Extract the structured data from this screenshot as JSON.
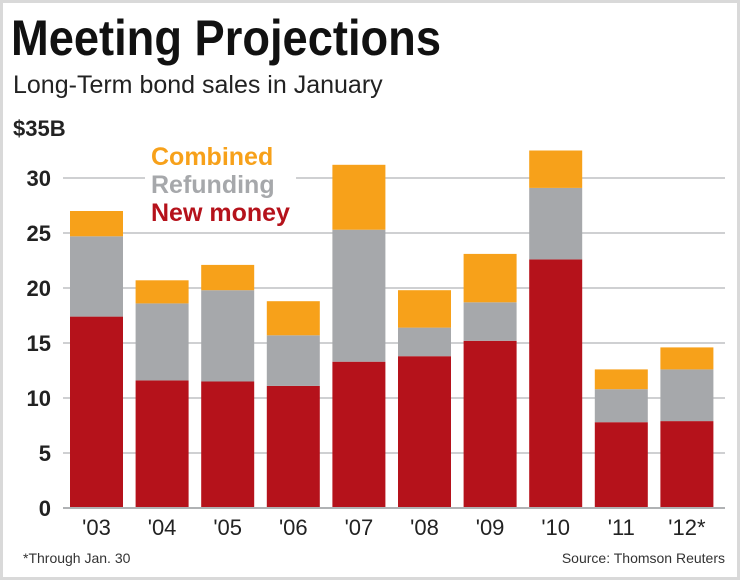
{
  "chart_data": {
    "type": "bar",
    "stacked": true,
    "title": "Meeting Projections",
    "subtitle": "Long-Term bond sales in January",
    "ylabel": "",
    "xlabel": "",
    "y_top_label": "$35B",
    "ylim": [
      0,
      35
    ],
    "yticks": [
      0,
      5,
      10,
      15,
      20,
      25,
      30
    ],
    "grid": true,
    "legend_placement": "top-left",
    "categories": [
      "'03",
      "'04",
      "'05",
      "'06",
      "'07",
      "'08",
      "'09",
      "'10",
      "'11",
      "'12*"
    ],
    "series": [
      {
        "name": "New money",
        "color": "#b5121b",
        "values": [
          17.4,
          11.6,
          11.5,
          11.1,
          13.3,
          13.8,
          15.2,
          22.6,
          7.8,
          7.9
        ]
      },
      {
        "name": "Refunding",
        "color": "#a6a8ab",
        "values": [
          7.3,
          7.0,
          8.3,
          4.6,
          12.0,
          2.6,
          3.5,
          6.5,
          3.0,
          4.7
        ]
      },
      {
        "name": "Combined",
        "color": "#f7a11a",
        "values": [
          2.3,
          2.1,
          2.3,
          3.1,
          5.9,
          3.4,
          4.4,
          3.4,
          1.8,
          2.0
        ]
      }
    ],
    "footnote": "*Through Jan. 30",
    "source": "Source: Thomson Reuters"
  }
}
